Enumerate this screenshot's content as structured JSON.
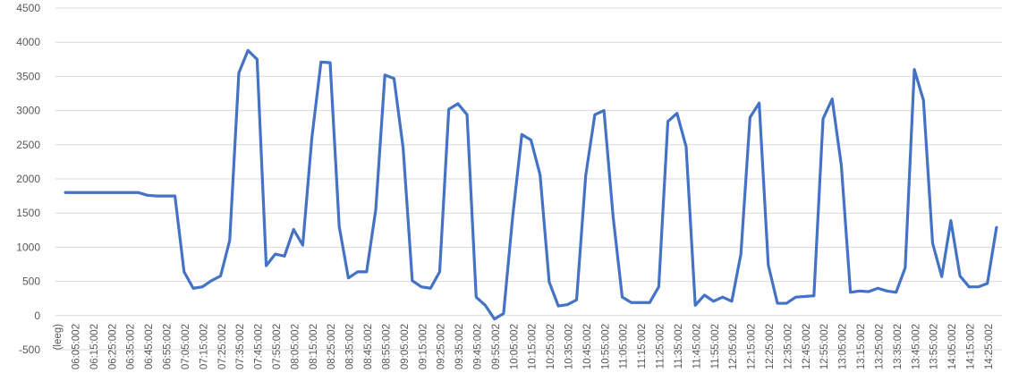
{
  "chart_data": {
    "type": "line",
    "categories": [
      "(leeg)",
      null,
      "06:05:002",
      null,
      "06:15:002",
      null,
      "06:25:002",
      null,
      "06:35:002",
      null,
      "06:45:002",
      null,
      "06:55:002",
      null,
      "07:05:002",
      null,
      "07:15:002",
      null,
      "07:25:002",
      null,
      "07:35:002",
      null,
      "07:45:002",
      null,
      "07:55:002",
      null,
      "08:05:002",
      null,
      "08:15:002",
      null,
      "08:25:002",
      null,
      "08:35:002",
      null,
      "08:45:002",
      null,
      "08:55:002",
      null,
      "09:05:002",
      null,
      "09:15:002",
      null,
      "09:25:002",
      null,
      "09:35:002",
      null,
      "09:45:002",
      null,
      "09:55:002",
      null,
      "10:05:002",
      null,
      "10:15:002",
      null,
      "10:25:002",
      null,
      "10:35:002",
      null,
      "10:45:002",
      null,
      "10:55:002",
      null,
      "11:05:002",
      null,
      "11:15:002",
      null,
      "11:25:002",
      null,
      "11:35:002",
      null,
      "11:45:002",
      null,
      "11:55:002",
      null,
      "12:05:002",
      null,
      "12:15:002",
      null,
      "12:25:002",
      null,
      "12:35:002",
      null,
      "12:45:002",
      null,
      "12:55:002",
      null,
      "13:05:002",
      null,
      "13:15:002",
      null,
      "13:25:002",
      null,
      "13:35:002",
      null,
      "13:45:002",
      null,
      "13:55:002",
      null,
      "14:05:002",
      null,
      "14:15:002",
      null,
      "14:25:002"
    ],
    "values": [
      1800,
      1800,
      1800,
      1800,
      1800,
      1800,
      1800,
      1800,
      1800,
      1760,
      1750,
      1750,
      1750,
      640,
      400,
      420,
      510,
      580,
      1100,
      3550,
      3880,
      3750,
      730,
      900,
      870,
      1260,
      1030,
      2600,
      3710,
      3700,
      1300,
      550,
      640,
      640,
      1550,
      3520,
      3470,
      2450,
      510,
      420,
      400,
      640,
      3020,
      3100,
      2940,
      270,
      150,
      -50,
      30,
      1450,
      2650,
      2570,
      2060,
      490,
      140,
      160,
      230,
      2050,
      2940,
      3000,
      1450,
      270,
      190,
      190,
      190,
      420,
      2840,
      2960,
      2470,
      150,
      300,
      210,
      270,
      210,
      900,
      2900,
      3110,
      740,
      180,
      180,
      270,
      280,
      290,
      2880,
      3170,
      2200,
      340,
      360,
      350,
      400,
      360,
      340,
      700,
      3600,
      3150,
      1060,
      570,
      1390,
      580,
      420,
      420,
      470,
      1290
    ],
    "color": "#4472c4",
    "ylim": [
      -500,
      4500
    ],
    "yticks": [
      -500,
      0,
      500,
      1000,
      1500,
      2000,
      2500,
      3000,
      3500,
      4000,
      4500
    ],
    "grid": true
  }
}
